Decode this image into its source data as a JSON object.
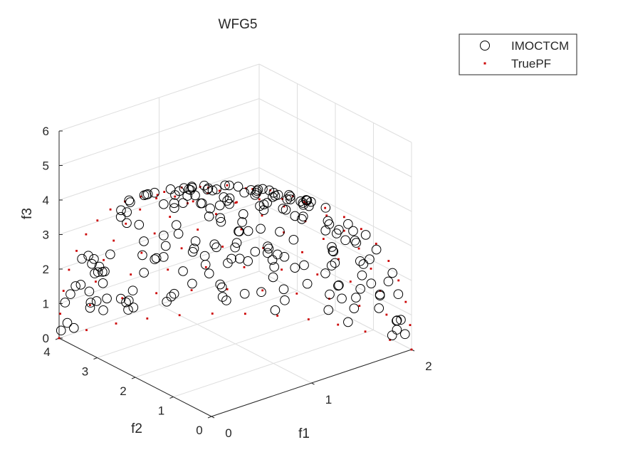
{
  "chart_data": {
    "type": "scatter",
    "title": "WFG5",
    "xlabel": "f1",
    "ylabel": "f2",
    "zlabel": "f3",
    "xlim": [
      0,
      2
    ],
    "ylim": [
      0,
      4
    ],
    "zlim": [
      0,
      6
    ],
    "xticks": [
      "0",
      "1",
      "2"
    ],
    "yticks": [
      "0",
      "1",
      "2",
      "3",
      "4"
    ],
    "zticks": [
      "0",
      "1",
      "2",
      "3",
      "4",
      "5",
      "6"
    ],
    "grid": true,
    "legend": {
      "placement": "top-right",
      "entries": [
        "IMOCTCM",
        "TruePF"
      ]
    },
    "front_shape": "ellipsoid f1^2/4 + f2^2/16 + f3^2/36 = 1 (f1,f2,f3 >= 0), concave",
    "series": [
      {
        "name": "IMOCTCM",
        "marker": "open-circle",
        "color": "#000000",
        "points_description": "points spread over the concave front surface"
      },
      {
        "name": "TruePF",
        "marker": "dot",
        "color": "#cc0000",
        "points_description": "regular grid of points on the front surface"
      }
    ]
  }
}
